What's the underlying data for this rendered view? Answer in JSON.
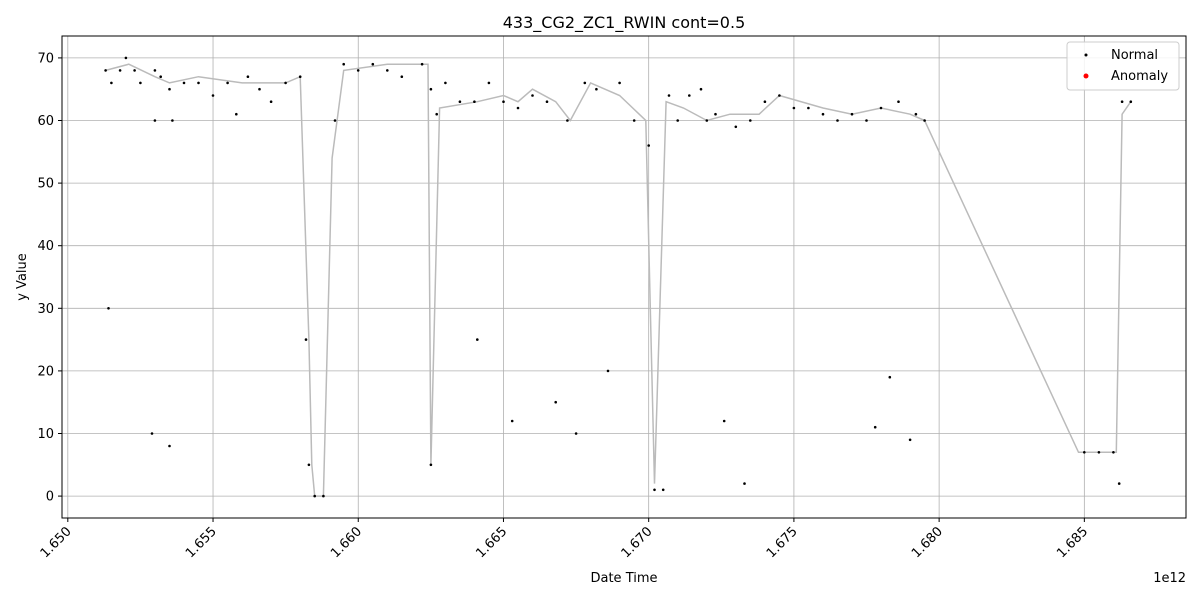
{
  "chart_data": {
    "type": "scatter",
    "title": "433_CG2_ZC1_RWIN cont=0.5",
    "xlabel": "Date Time",
    "ylabel": "y Value",
    "x_offset_label": "1e12",
    "xlim": [
      1.6498,
      1.6885
    ],
    "ylim": [
      -3.5,
      73.5
    ],
    "x_ticks": [
      {
        "value": 1.65,
        "label": "1.650"
      },
      {
        "value": 1.655,
        "label": "1.655"
      },
      {
        "value": 1.66,
        "label": "1.660"
      },
      {
        "value": 1.665,
        "label": "1.665"
      },
      {
        "value": 1.67,
        "label": "1.670"
      },
      {
        "value": 1.675,
        "label": "1.675"
      },
      {
        "value": 1.68,
        "label": "1.680"
      },
      {
        "value": 1.685,
        "label": "1.685"
      }
    ],
    "y_ticks": [
      {
        "value": 0,
        "label": "0"
      },
      {
        "value": 10,
        "label": "10"
      },
      {
        "value": 20,
        "label": "20"
      },
      {
        "value": 30,
        "label": "30"
      },
      {
        "value": 40,
        "label": "40"
      },
      {
        "value": 50,
        "label": "50"
      },
      {
        "value": 60,
        "label": "60"
      },
      {
        "value": 70,
        "label": "70"
      }
    ],
    "grid": true,
    "legend_position": "top-right",
    "legend": [
      {
        "name": "Normal",
        "color": "#000000"
      },
      {
        "name": "Anomaly",
        "color": "#ff0000"
      }
    ],
    "line_color": "#bbbbbb",
    "series": [
      {
        "name": "Normal",
        "color": "#000000",
        "points": [
          [
            1.6513,
            68
          ],
          [
            1.6514,
            30
          ],
          [
            1.6515,
            66
          ],
          [
            1.6518,
            68
          ],
          [
            1.652,
            70
          ],
          [
            1.6523,
            68
          ],
          [
            1.6525,
            66
          ],
          [
            1.653,
            68
          ],
          [
            1.6529,
            10
          ],
          [
            1.653,
            60
          ],
          [
            1.6532,
            67
          ],
          [
            1.6535,
            65
          ],
          [
            1.6535,
            8
          ],
          [
            1.6536,
            60
          ],
          [
            1.654,
            66
          ],
          [
            1.6545,
            66
          ],
          [
            1.655,
            64
          ],
          [
            1.6555,
            66
          ],
          [
            1.6558,
            61
          ],
          [
            1.6562,
            67
          ],
          [
            1.6566,
            65
          ],
          [
            1.657,
            63
          ],
          [
            1.6575,
            66
          ],
          [
            1.658,
            67
          ],
          [
            1.6582,
            25
          ],
          [
            1.6583,
            5
          ],
          [
            1.6585,
            0
          ],
          [
            1.6588,
            0
          ],
          [
            1.6592,
            60
          ],
          [
            1.6595,
            69
          ],
          [
            1.66,
            68
          ],
          [
            1.6605,
            69
          ],
          [
            1.661,
            68
          ],
          [
            1.6615,
            67
          ],
          [
            1.6622,
            69
          ],
          [
            1.6625,
            65
          ],
          [
            1.6625,
            5
          ],
          [
            1.6627,
            61
          ],
          [
            1.663,
            66
          ],
          [
            1.6635,
            63
          ],
          [
            1.664,
            63
          ],
          [
            1.6641,
            25
          ],
          [
            1.6645,
            66
          ],
          [
            1.665,
            63
          ],
          [
            1.6653,
            12
          ],
          [
            1.6655,
            62
          ],
          [
            1.666,
            64
          ],
          [
            1.6665,
            63
          ],
          [
            1.6668,
            15
          ],
          [
            1.6672,
            60
          ],
          [
            1.6675,
            10
          ],
          [
            1.6678,
            66
          ],
          [
            1.6682,
            65
          ],
          [
            1.6686,
            20
          ],
          [
            1.669,
            66
          ],
          [
            1.6695,
            60
          ],
          [
            1.67,
            56
          ],
          [
            1.6702,
            1
          ],
          [
            1.6705,
            1
          ],
          [
            1.6707,
            64
          ],
          [
            1.671,
            60
          ],
          [
            1.6714,
            64
          ],
          [
            1.6718,
            65
          ],
          [
            1.672,
            60
          ],
          [
            1.6723,
            61
          ],
          [
            1.6726,
            12
          ],
          [
            1.673,
            59
          ],
          [
            1.6733,
            2
          ],
          [
            1.6735,
            60
          ],
          [
            1.674,
            63
          ],
          [
            1.6745,
            64
          ],
          [
            1.675,
            62
          ],
          [
            1.6755,
            62
          ],
          [
            1.676,
            61
          ],
          [
            1.6765,
            60
          ],
          [
            1.677,
            61
          ],
          [
            1.6775,
            60
          ],
          [
            1.6778,
            11
          ],
          [
            1.678,
            62
          ],
          [
            1.6783,
            19
          ],
          [
            1.6786,
            63
          ],
          [
            1.679,
            9
          ],
          [
            1.6792,
            61
          ],
          [
            1.6795,
            60
          ],
          [
            1.685,
            7
          ],
          [
            1.6855,
            7
          ],
          [
            1.686,
            7
          ],
          [
            1.6862,
            2
          ],
          [
            1.6863,
            63
          ],
          [
            1.6866,
            63
          ]
        ],
        "line": [
          [
            1.6513,
            68
          ],
          [
            1.6521,
            69
          ],
          [
            1.653,
            67
          ],
          [
            1.6535,
            66
          ],
          [
            1.6545,
            67
          ],
          [
            1.656,
            66
          ],
          [
            1.6575,
            66
          ],
          [
            1.658,
            67
          ],
          [
            1.6583,
            25
          ],
          [
            1.6584,
            5
          ],
          [
            1.6585,
            0
          ],
          [
            1.6588,
            0
          ],
          [
            1.6591,
            54
          ],
          [
            1.6595,
            68
          ],
          [
            1.661,
            69
          ],
          [
            1.6624,
            69
          ],
          [
            1.6625,
            5
          ],
          [
            1.6628,
            62
          ],
          [
            1.6641,
            63
          ],
          [
            1.665,
            64
          ],
          [
            1.6655,
            63
          ],
          [
            1.666,
            65
          ],
          [
            1.6668,
            63
          ],
          [
            1.6673,
            60
          ],
          [
            1.668,
            66
          ],
          [
            1.669,
            64
          ],
          [
            1.6699,
            60
          ],
          [
            1.6702,
            2
          ],
          [
            1.6706,
            63
          ],
          [
            1.6712,
            62
          ],
          [
            1.672,
            60
          ],
          [
            1.6728,
            61
          ],
          [
            1.6738,
            61
          ],
          [
            1.6745,
            64
          ],
          [
            1.676,
            62
          ],
          [
            1.677,
            61
          ],
          [
            1.678,
            62
          ],
          [
            1.679,
            61
          ],
          [
            1.6795,
            60
          ],
          [
            1.6848,
            7
          ],
          [
            1.6861,
            7
          ],
          [
            1.6863,
            61
          ],
          [
            1.6866,
            63
          ]
        ]
      },
      {
        "name": "Anomaly",
        "color": "#ff0000",
        "points": []
      }
    ]
  }
}
